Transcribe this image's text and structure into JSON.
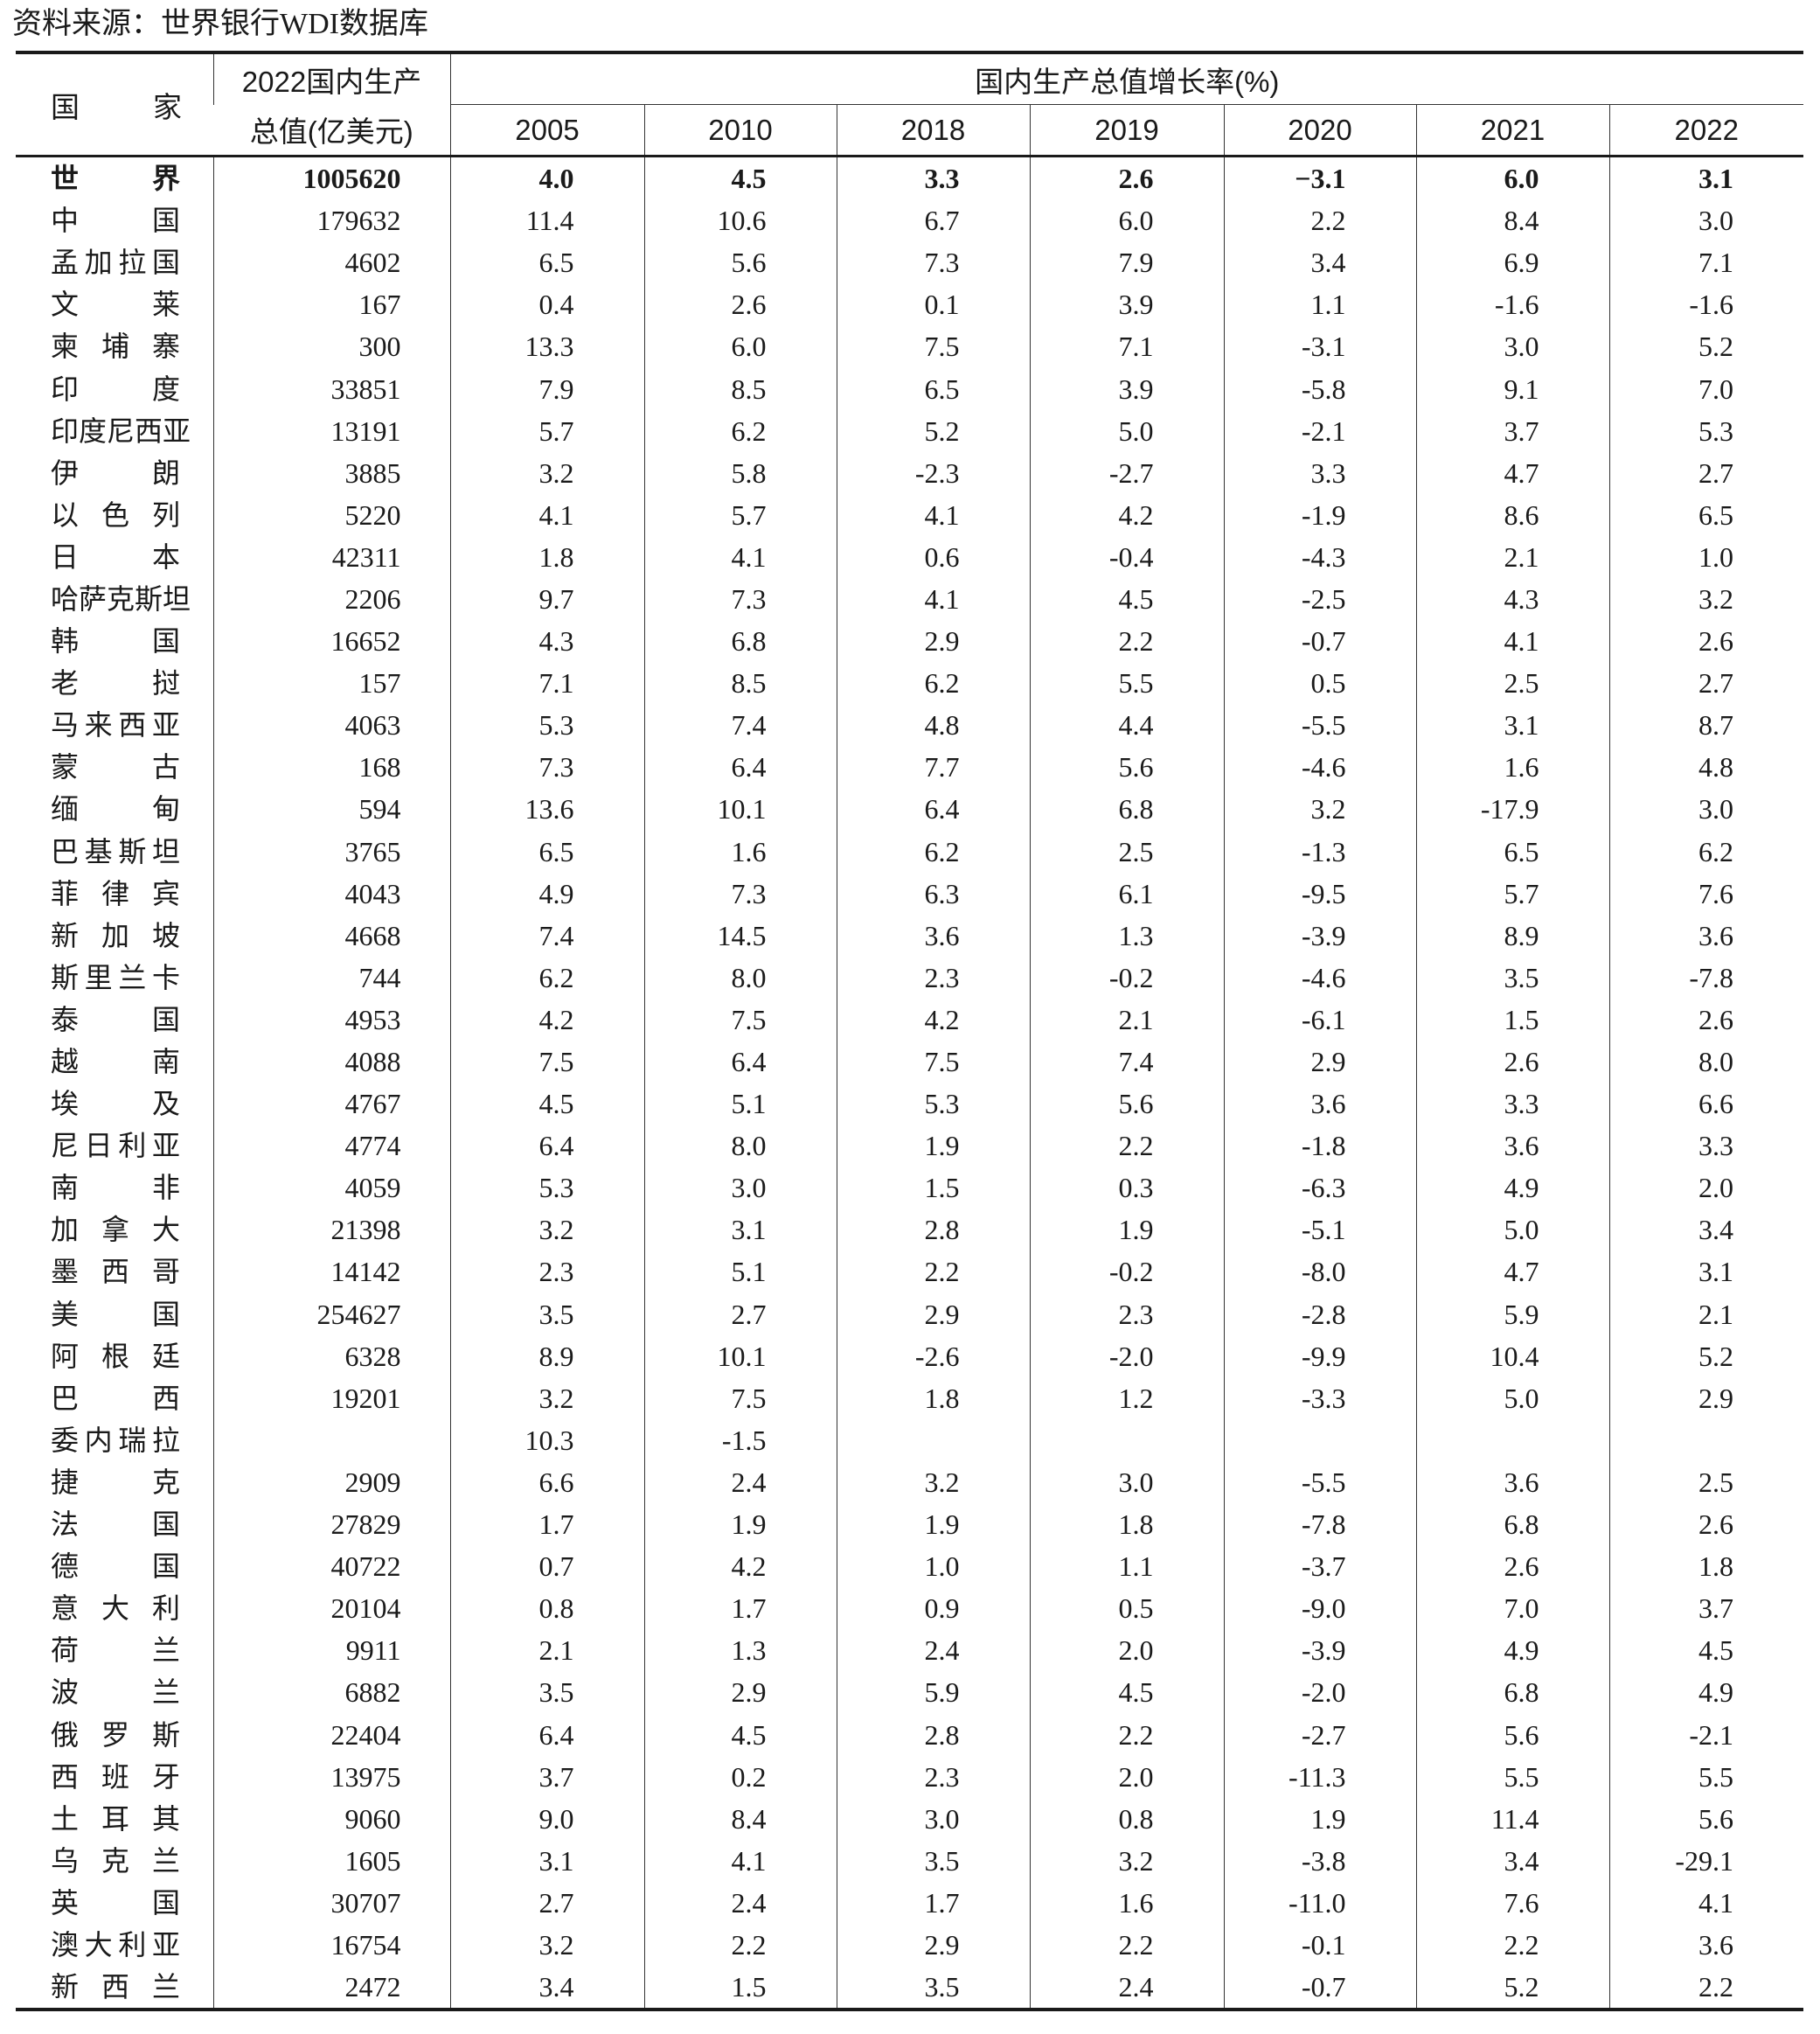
{
  "source": "资料来源：世界银行WDI数据库",
  "header": {
    "country": "国　　家",
    "gdp_line1": "2022国内生产",
    "gdp_line2": "总值(亿美元)",
    "growth": "国内生产总值增长率(%)",
    "years": [
      "2005",
      "2010",
      "2018",
      "2019",
      "2020",
      "2021",
      "2022"
    ]
  },
  "rows": [
    {
      "name": "世界",
      "gdp": "1005620",
      "rates": [
        "4.0",
        "4.5",
        "3.3",
        "2.6",
        "−3.1",
        "6.0",
        "3.1"
      ],
      "bold": true
    },
    {
      "name": "中国",
      "gdp": "179632",
      "rates": [
        "11.4",
        "10.6",
        "6.7",
        "6.0",
        "2.2",
        "8.4",
        "3.0"
      ]
    },
    {
      "name": "孟加拉国",
      "gdp": "4602",
      "rates": [
        "6.5",
        "5.6",
        "7.3",
        "7.9",
        "3.4",
        "6.9",
        "7.1"
      ]
    },
    {
      "name": "文莱",
      "gdp": "167",
      "rates": [
        "0.4",
        "2.6",
        "0.1",
        "3.9",
        "1.1",
        "-1.6",
        "-1.6"
      ]
    },
    {
      "name": "柬埔寨",
      "gdp": "300",
      "rates": [
        "13.3",
        "6.0",
        "7.5",
        "7.1",
        "-3.1",
        "3.0",
        "5.2"
      ]
    },
    {
      "name": "印度",
      "gdp": "33851",
      "rates": [
        "7.9",
        "8.5",
        "6.5",
        "3.9",
        "-5.8",
        "9.1",
        "7.0"
      ]
    },
    {
      "name": "印度尼西亚",
      "gdp": "13191",
      "rates": [
        "5.7",
        "6.2",
        "5.2",
        "5.0",
        "-2.1",
        "3.7",
        "5.3"
      ]
    },
    {
      "name": "伊朗",
      "gdp": "3885",
      "rates": [
        "3.2",
        "5.8",
        "-2.3",
        "-2.7",
        "3.3",
        "4.7",
        "2.7"
      ]
    },
    {
      "name": "以色列",
      "gdp": "5220",
      "rates": [
        "4.1",
        "5.7",
        "4.1",
        "4.2",
        "-1.9",
        "8.6",
        "6.5"
      ]
    },
    {
      "name": "日本",
      "gdp": "42311",
      "rates": [
        "1.8",
        "4.1",
        "0.6",
        "-0.4",
        "-4.3",
        "2.1",
        "1.0"
      ]
    },
    {
      "name": "哈萨克斯坦",
      "gdp": "2206",
      "rates": [
        "9.7",
        "7.3",
        "4.1",
        "4.5",
        "-2.5",
        "4.3",
        "3.2"
      ]
    },
    {
      "name": "韩国",
      "gdp": "16652",
      "rates": [
        "4.3",
        "6.8",
        "2.9",
        "2.2",
        "-0.7",
        "4.1",
        "2.6"
      ]
    },
    {
      "name": "老挝",
      "gdp": "157",
      "rates": [
        "7.1",
        "8.5",
        "6.2",
        "5.5",
        "0.5",
        "2.5",
        "2.7"
      ]
    },
    {
      "name": "马来西亚",
      "gdp": "4063",
      "rates": [
        "5.3",
        "7.4",
        "4.8",
        "4.4",
        "-5.5",
        "3.1",
        "8.7"
      ]
    },
    {
      "name": "蒙古",
      "gdp": "168",
      "rates": [
        "7.3",
        "6.4",
        "7.7",
        "5.6",
        "-4.6",
        "1.6",
        "4.8"
      ]
    },
    {
      "name": "缅甸",
      "gdp": "594",
      "rates": [
        "13.6",
        "10.1",
        "6.4",
        "6.8",
        "3.2",
        "-17.9",
        "3.0"
      ]
    },
    {
      "name": "巴基斯坦",
      "gdp": "3765",
      "rates": [
        "6.5",
        "1.6",
        "6.2",
        "2.5",
        "-1.3",
        "6.5",
        "6.2"
      ]
    },
    {
      "name": "菲律宾",
      "gdp": "4043",
      "rates": [
        "4.9",
        "7.3",
        "6.3",
        "6.1",
        "-9.5",
        "5.7",
        "7.6"
      ]
    },
    {
      "name": "新加坡",
      "gdp": "4668",
      "rates": [
        "7.4",
        "14.5",
        "3.6",
        "1.3",
        "-3.9",
        "8.9",
        "3.6"
      ]
    },
    {
      "name": "斯里兰卡",
      "gdp": "744",
      "rates": [
        "6.2",
        "8.0",
        "2.3",
        "-0.2",
        "-4.6",
        "3.5",
        "-7.8"
      ]
    },
    {
      "name": "泰国",
      "gdp": "4953",
      "rates": [
        "4.2",
        "7.5",
        "4.2",
        "2.1",
        "-6.1",
        "1.5",
        "2.6"
      ]
    },
    {
      "name": "越南",
      "gdp": "4088",
      "rates": [
        "7.5",
        "6.4",
        "7.5",
        "7.4",
        "2.9",
        "2.6",
        "8.0"
      ]
    },
    {
      "name": "埃及",
      "gdp": "4767",
      "rates": [
        "4.5",
        "5.1",
        "5.3",
        "5.6",
        "3.6",
        "3.3",
        "6.6"
      ]
    },
    {
      "name": "尼日利亚",
      "gdp": "4774",
      "rates": [
        "6.4",
        "8.0",
        "1.9",
        "2.2",
        "-1.8",
        "3.6",
        "3.3"
      ]
    },
    {
      "name": "南非",
      "gdp": "4059",
      "rates": [
        "5.3",
        "3.0",
        "1.5",
        "0.3",
        "-6.3",
        "4.9",
        "2.0"
      ]
    },
    {
      "name": "加拿大",
      "gdp": "21398",
      "rates": [
        "3.2",
        "3.1",
        "2.8",
        "1.9",
        "-5.1",
        "5.0",
        "3.4"
      ]
    },
    {
      "name": "墨西哥",
      "gdp": "14142",
      "rates": [
        "2.3",
        "5.1",
        "2.2",
        "-0.2",
        "-8.0",
        "4.7",
        "3.1"
      ]
    },
    {
      "name": "美国",
      "gdp": "254627",
      "rates": [
        "3.5",
        "2.7",
        "2.9",
        "2.3",
        "-2.8",
        "5.9",
        "2.1"
      ]
    },
    {
      "name": "阿根廷",
      "gdp": "6328",
      "rates": [
        "8.9",
        "10.1",
        "-2.6",
        "-2.0",
        "-9.9",
        "10.4",
        "5.2"
      ]
    },
    {
      "name": "巴西",
      "gdp": "19201",
      "rates": [
        "3.2",
        "7.5",
        "1.8",
        "1.2",
        "-3.3",
        "5.0",
        "2.9"
      ]
    },
    {
      "name": "委内瑞拉",
      "gdp": "",
      "rates": [
        "10.3",
        "-1.5",
        "",
        "",
        "",
        "",
        ""
      ]
    },
    {
      "name": "捷克",
      "gdp": "2909",
      "rates": [
        "6.6",
        "2.4",
        "3.2",
        "3.0",
        "-5.5",
        "3.6",
        "2.5"
      ]
    },
    {
      "name": "法国",
      "gdp": "27829",
      "rates": [
        "1.7",
        "1.9",
        "1.9",
        "1.8",
        "-7.8",
        "6.8",
        "2.6"
      ]
    },
    {
      "name": "德国",
      "gdp": "40722",
      "rates": [
        "0.7",
        "4.2",
        "1.0",
        "1.1",
        "-3.7",
        "2.6",
        "1.8"
      ]
    },
    {
      "name": "意大利",
      "gdp": "20104",
      "rates": [
        "0.8",
        "1.7",
        "0.9",
        "0.5",
        "-9.0",
        "7.0",
        "3.7"
      ]
    },
    {
      "name": "荷兰",
      "gdp": "9911",
      "rates": [
        "2.1",
        "1.3",
        "2.4",
        "2.0",
        "-3.9",
        "4.9",
        "4.5"
      ]
    },
    {
      "name": "波兰",
      "gdp": "6882",
      "rates": [
        "3.5",
        "2.9",
        "5.9",
        "4.5",
        "-2.0",
        "6.8",
        "4.9"
      ]
    },
    {
      "name": "俄罗斯",
      "gdp": "22404",
      "rates": [
        "6.4",
        "4.5",
        "2.8",
        "2.2",
        "-2.7",
        "5.6",
        "-2.1"
      ]
    },
    {
      "name": "西班牙",
      "gdp": "13975",
      "rates": [
        "3.7",
        "0.2",
        "2.3",
        "2.0",
        "-11.3",
        "5.5",
        "5.5"
      ]
    },
    {
      "name": "土耳其",
      "gdp": "9060",
      "rates": [
        "9.0",
        "8.4",
        "3.0",
        "0.8",
        "1.9",
        "11.4",
        "5.6"
      ]
    },
    {
      "name": "乌克兰",
      "gdp": "1605",
      "rates": [
        "3.1",
        "4.1",
        "3.5",
        "3.2",
        "-3.8",
        "3.4",
        "-29.1"
      ]
    },
    {
      "name": "英国",
      "gdp": "30707",
      "rates": [
        "2.7",
        "2.4",
        "1.7",
        "1.6",
        "-11.0",
        "7.6",
        "4.1"
      ]
    },
    {
      "name": "澳大利亚",
      "gdp": "16754",
      "rates": [
        "3.2",
        "2.2",
        "2.9",
        "2.2",
        "-0.1",
        "2.2",
        "3.6"
      ]
    },
    {
      "name": "新西兰",
      "gdp": "2472",
      "rates": [
        "3.4",
        "1.5",
        "3.5",
        "2.4",
        "-0.7",
        "5.2",
        "2.2"
      ]
    }
  ]
}
